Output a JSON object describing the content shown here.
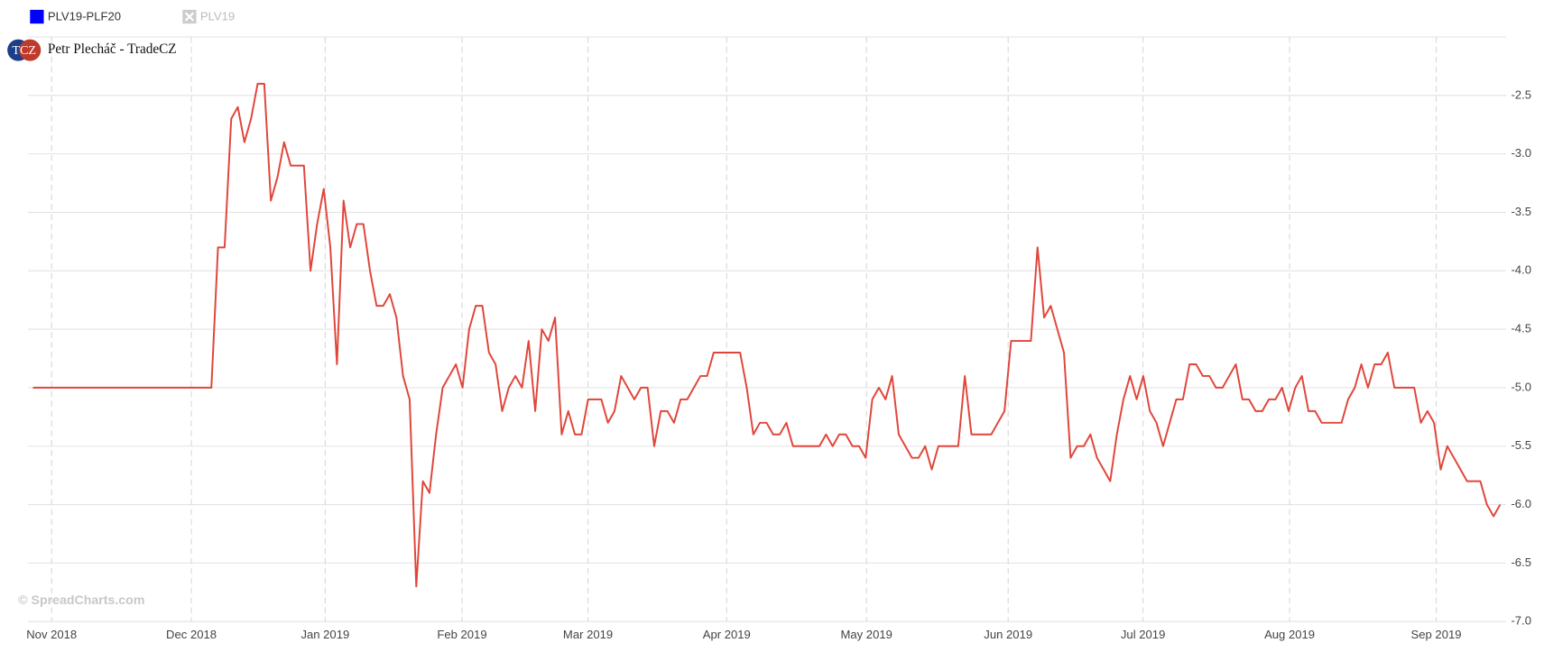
{
  "chart_data": {
    "type": "line",
    "brand": {
      "logo": "TCZ",
      "name": "Petr Plecháč - TradeCZ"
    },
    "watermark": "© SpreadCharts.com",
    "series": [
      {
        "name": "PLV19-PLF20",
        "color": "#e0453a",
        "legend_color": "#0000ff",
        "visible": true,
        "values": [
          -5.0,
          -5.0,
          -5.0,
          -5.0,
          -5.0,
          -5.0,
          -5.0,
          -5.0,
          -5.0,
          -5.0,
          -5.0,
          -5.0,
          -5.0,
          -5.0,
          -5.0,
          -5.0,
          -5.0,
          -5.0,
          -5.0,
          -5.0,
          -5.0,
          -5.0,
          -5.0,
          -5.0,
          -5.0,
          -5.0,
          -5.0,
          -5.0,
          -3.8,
          -3.8,
          -2.7,
          -2.6,
          -2.9,
          -2.7,
          -2.4,
          -2.4,
          -3.4,
          -3.2,
          -2.9,
          -3.1,
          -3.1,
          -3.1,
          -4.0,
          -3.6,
          -3.3,
          -3.8,
          -4.8,
          -3.4,
          -3.8,
          -3.6,
          -3.6,
          -4.0,
          -4.3,
          -4.3,
          -4.2,
          -4.4,
          -4.9,
          -5.1,
          -6.7,
          -5.8,
          -5.9,
          -5.4,
          -5.0,
          -4.9,
          -4.8,
          -5.0,
          -4.5,
          -4.3,
          -4.3,
          -4.7,
          -4.8,
          -5.2,
          -5.0,
          -4.9,
          -5.0,
          -4.6,
          -5.2,
          -4.5,
          -4.6,
          -4.4,
          -5.4,
          -5.2,
          -5.4,
          -5.4,
          -5.1,
          -5.1,
          -5.1,
          -5.3,
          -5.2,
          -4.9,
          -5.0,
          -5.1,
          -5.0,
          -5.0,
          -5.5,
          -5.2,
          -5.2,
          -5.3,
          -5.1,
          -5.1,
          -5.0,
          -4.9,
          -4.9,
          -4.7,
          -4.7,
          -4.7,
          -4.7,
          -4.7,
          -5.0,
          -5.4,
          -5.3,
          -5.3,
          -5.4,
          -5.4,
          -5.3,
          -5.5,
          -5.5,
          -5.5,
          -5.5,
          -5.5,
          -5.4,
          -5.5,
          -5.4,
          -5.4,
          -5.5,
          -5.5,
          -5.6,
          -5.1,
          -5.0,
          -5.1,
          -4.9,
          -5.4,
          -5.5,
          -5.6,
          -5.6,
          -5.5,
          -5.7,
          -5.5,
          -5.5,
          -5.5,
          -5.5,
          -4.9,
          -5.4,
          -5.4,
          -5.4,
          -5.4,
          -5.3,
          -5.2,
          -4.6,
          -4.6,
          -4.6,
          -4.6,
          -3.8,
          -4.4,
          -4.3,
          -4.5,
          -4.7,
          -5.6,
          -5.5,
          -5.5,
          -5.4,
          -5.6,
          -5.7,
          -5.8,
          -5.4,
          -5.1,
          -4.9,
          -5.1,
          -4.9,
          -5.2,
          -5.3,
          -5.5,
          -5.3,
          -5.1,
          -5.1,
          -4.8,
          -4.8,
          -4.9,
          -4.9,
          -5.0,
          -5.0,
          -4.9,
          -4.8,
          -5.1,
          -5.1,
          -5.2,
          -5.2,
          -5.1,
          -5.1,
          -5.0,
          -5.2,
          -5.0,
          -4.9,
          -5.2,
          -5.2,
          -5.3,
          -5.3,
          -5.3,
          -5.3,
          -5.1,
          -5.0,
          -4.8,
          -5.0,
          -4.8,
          -4.8,
          -4.7,
          -5.0,
          -5.0,
          -5.0,
          -5.0,
          -5.3,
          -5.2,
          -5.3,
          -5.7,
          -5.5,
          -5.6,
          -5.7,
          -5.8,
          -5.8,
          -5.8,
          -6.0,
          -6.1,
          -6.0
        ]
      },
      {
        "name": "PLV19",
        "visible": false
      }
    ],
    "xlim": [
      -0.74,
      222.9
    ],
    "xticks": [
      {
        "value": 2.83,
        "label": "Nov 2018"
      },
      {
        "value": 23.97,
        "label": "Dec 2018"
      },
      {
        "value": 44.22,
        "label": "Jan 2019"
      },
      {
        "value": 64.92,
        "label": "Feb 2019"
      },
      {
        "value": 83.98,
        "label": "Mar 2019"
      },
      {
        "value": 104.97,
        "label": "Apr 2019"
      },
      {
        "value": 126.12,
        "label": "May 2019"
      },
      {
        "value": 147.56,
        "label": "Jun 2019"
      },
      {
        "value": 167.96,
        "label": "Jul 2019"
      },
      {
        "value": 190.14,
        "label": "Aug 2019"
      },
      {
        "value": 212.32,
        "label": "Sep 2019"
      }
    ],
    "ylim": [
      -7.0,
      -2.0
    ],
    "yticks": [
      {
        "value": -2.5,
        "label": "-2.5"
      },
      {
        "value": -3.0,
        "label": "-3.0"
      },
      {
        "value": -3.5,
        "label": "-3.5"
      },
      {
        "value": -4.0,
        "label": "-4.0"
      },
      {
        "value": -4.5,
        "label": "-4.5"
      },
      {
        "value": -5.0,
        "label": "-5.0"
      },
      {
        "value": -5.5,
        "label": "-5.5"
      },
      {
        "value": -6.0,
        "label": "-6.0"
      },
      {
        "value": -6.5,
        "label": "-6.5"
      },
      {
        "value": -7.0,
        "label": "-7.0"
      }
    ],
    "grid": true,
    "x_grid": "dashed"
  }
}
